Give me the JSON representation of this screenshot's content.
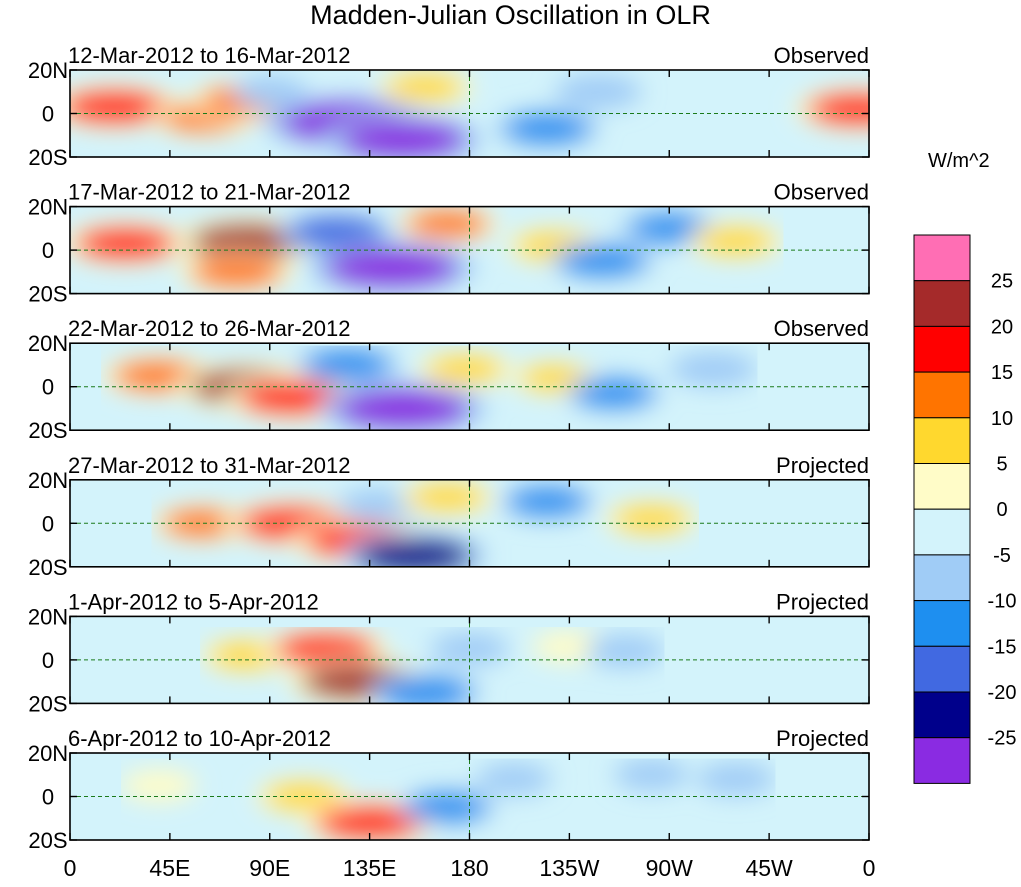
{
  "title": "Madden-Julian Oscillation in OLR",
  "colorbar": {
    "unit_label": "W/m^2",
    "tick_labels": [
      "25",
      "20",
      "15",
      "10",
      "5",
      "0",
      "-5",
      "-10",
      "-15",
      "-20",
      "-25"
    ],
    "colors": [
      "#ff6eb4",
      "#a52a2a",
      "#ff0000",
      "#ff7400",
      "#ffd82e",
      "#fffcc8",
      "#d3f3fb",
      "#a0ccf6",
      "#1e8ff0",
      "#4169e1",
      "#00008b",
      "#8a2be2"
    ]
  },
  "chart_data": {
    "type": "heatmap",
    "title": "Madden-Julian Oscillation in OLR",
    "x_tick_labels": [
      "0",
      "45E",
      "90E",
      "135E",
      "180",
      "135W",
      "90W",
      "45W",
      "0"
    ],
    "y_tick_labels": [
      "20N",
      "0",
      "20S"
    ],
    "xlim": [
      0,
      360
    ],
    "ylim": [
      -20,
      20
    ],
    "levels": [
      -25,
      -20,
      -15,
      -10,
      -5,
      0,
      5,
      10,
      15,
      20,
      25
    ],
    "color_scale": "blue (negative) to red (positive)",
    "reference_lines": [
      "equator (dashed)",
      "180 meridian (dashed)"
    ],
    "panels": [
      {
        "period": "12-Mar-2012 to 16-Mar-2012",
        "status": "Observed",
        "anomalies": [
          {
            "lon": 20,
            "lat": 3,
            "value": 20
          },
          {
            "lon": 60,
            "lat": -2,
            "value": 12
          },
          {
            "lon": 80,
            "lat": 6,
            "value": 15
          },
          {
            "lon": 90,
            "lat": 10,
            "value": -5
          },
          {
            "lon": 125,
            "lat": -4,
            "value": -28
          },
          {
            "lon": 150,
            "lat": -12,
            "value": -26
          },
          {
            "lon": 160,
            "lat": 12,
            "value": 10
          },
          {
            "lon": 215,
            "lat": -7,
            "value": -12
          },
          {
            "lon": 238,
            "lat": 10,
            "value": -8
          },
          {
            "lon": 355,
            "lat": 2,
            "value": 18
          }
        ]
      },
      {
        "period": "17-Mar-2012 to 21-Mar-2012",
        "status": "Observed",
        "anomalies": [
          {
            "lon": 25,
            "lat": 3,
            "value": 18
          },
          {
            "lon": 80,
            "lat": 4,
            "value": 22
          },
          {
            "lon": 75,
            "lat": -10,
            "value": 15
          },
          {
            "lon": 120,
            "lat": 8,
            "value": -15
          },
          {
            "lon": 145,
            "lat": -8,
            "value": -28
          },
          {
            "lon": 170,
            "lat": 12,
            "value": 12
          },
          {
            "lon": 218,
            "lat": 2,
            "value": 10
          },
          {
            "lon": 240,
            "lat": -5,
            "value": -12
          },
          {
            "lon": 270,
            "lat": 10,
            "value": -10
          },
          {
            "lon": 300,
            "lat": 4,
            "value": 10
          }
        ]
      },
      {
        "period": "22-Mar-2012 to 26-Mar-2012",
        "status": "Observed",
        "anomalies": [
          {
            "lon": 40,
            "lat": 5,
            "value": 15
          },
          {
            "lon": 80,
            "lat": 0,
            "value": 22
          },
          {
            "lon": 100,
            "lat": -5,
            "value": 20
          },
          {
            "lon": 125,
            "lat": 10,
            "value": -12
          },
          {
            "lon": 150,
            "lat": -10,
            "value": -28
          },
          {
            "lon": 178,
            "lat": 8,
            "value": 10
          },
          {
            "lon": 218,
            "lat": 4,
            "value": 7
          },
          {
            "lon": 245,
            "lat": -3,
            "value": -10
          },
          {
            "lon": 290,
            "lat": 8,
            "value": -8
          }
        ]
      },
      {
        "period": "27-Mar-2012 to 31-Mar-2012",
        "status": "Projected",
        "anomalies": [
          {
            "lon": 60,
            "lat": 0,
            "value": 12
          },
          {
            "lon": 100,
            "lat": 0,
            "value": 20
          },
          {
            "lon": 130,
            "lat": -8,
            "value": 20
          },
          {
            "lon": 140,
            "lat": 8,
            "value": -8
          },
          {
            "lon": 155,
            "lat": -15,
            "value": -22
          },
          {
            "lon": 170,
            "lat": 12,
            "value": 10
          },
          {
            "lon": 215,
            "lat": 10,
            "value": -10
          },
          {
            "lon": 262,
            "lat": 2,
            "value": 10
          }
        ]
      },
      {
        "period": "1-Apr-2012 to 5-Apr-2012",
        "status": "Projected",
        "anomalies": [
          {
            "lon": 80,
            "lat": 2,
            "value": 10
          },
          {
            "lon": 115,
            "lat": 5,
            "value": 18
          },
          {
            "lon": 130,
            "lat": -10,
            "value": 22
          },
          {
            "lon": 160,
            "lat": -15,
            "value": -14
          },
          {
            "lon": 180,
            "lat": 5,
            "value": -6
          },
          {
            "lon": 225,
            "lat": 6,
            "value": 5
          },
          {
            "lon": 250,
            "lat": 4,
            "value": -6
          }
        ]
      },
      {
        "period": "6-Apr-2012 to 10-Apr-2012",
        "status": "Projected",
        "anomalies": [
          {
            "lon": 40,
            "lat": 5,
            "value": 5
          },
          {
            "lon": 105,
            "lat": 0,
            "value": 10
          },
          {
            "lon": 135,
            "lat": -12,
            "value": 20
          },
          {
            "lon": 170,
            "lat": -5,
            "value": -10
          },
          {
            "lon": 200,
            "lat": 8,
            "value": -5
          },
          {
            "lon": 262,
            "lat": 10,
            "value": -5
          },
          {
            "lon": 300,
            "lat": 8,
            "value": -6
          }
        ]
      }
    ]
  }
}
